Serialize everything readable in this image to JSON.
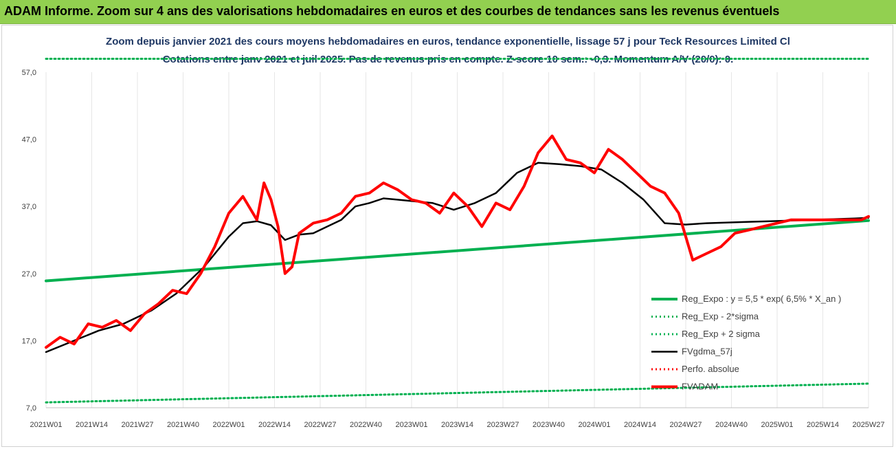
{
  "header": {
    "title": "ADAM Informe. Zoom sur 4 ans des valorisations hebdomadaires en euros et des courbes de tendances sans les revenus éventuels"
  },
  "chart_data": {
    "type": "line",
    "title_line1": "Zoom depuis janvier 2021 des cours moyens hebdomadaires en euros, tendance exponentielle, lissage 57 j pour Teck Resources Limited Cl",
    "title_line2": "Cotations entre janv 2021 et juil 2025. Pas de revenus pris en compte. Z-score 10 sem.: -0,3. Momentum A/V (20/0): 0.",
    "x_tick_labels": [
      "2021W01",
      "2021W14",
      "2021W27",
      "2021W40",
      "2022W01",
      "2022W14",
      "2022W27",
      "2022W40",
      "2023W01",
      "2023W14",
      "2023W27",
      "2023W40",
      "2024W01",
      "2024W14",
      "2024W27",
      "2024W40",
      "2025W01",
      "2025W14",
      "2025W27"
    ],
    "y_tick_labels": [
      "7,0",
      "17,0",
      "27,0",
      "37,0",
      "47,0",
      "57,0"
    ],
    "ylim": [
      7,
      57
    ],
    "x_range_weeks": [
      0,
      234
    ],
    "grid": "vertical",
    "legend_position": "bottom-right",
    "series": [
      {
        "name": "Reg_Expo : y = 5,5 * exp( 6,5% *  X_an )",
        "color": "#00b050",
        "style": "solid-thick",
        "x": [
          0,
          234
        ],
        "y": [
          25.9,
          34.9
        ]
      },
      {
        "name": "Reg_Exp - 2*sigma",
        "color": "#00b050",
        "style": "dotted",
        "x": [
          0,
          234
        ],
        "y": [
          7.8,
          10.6
        ]
      },
      {
        "name": "Reg_Exp + 2 sigma",
        "color": "#00b050",
        "style": "dotted",
        "x": [
          0,
          20,
          234
        ],
        "y": [
          59.0,
          59.0,
          59.0
        ]
      },
      {
        "name": "FVgdma_57j",
        "color": "#000000",
        "style": "solid",
        "x": [
          0,
          8,
          15,
          22,
          30,
          37,
          45,
          52,
          56,
          60,
          64,
          68,
          72,
          76,
          80,
          84,
          88,
          92,
          96,
          100,
          104,
          110,
          116,
          122,
          128,
          134,
          140,
          146,
          152,
          158,
          164,
          170,
          176,
          182,
          188,
          194,
          200,
          206,
          212,
          218,
          224,
          230,
          234
        ],
        "y": [
          15.3,
          17.0,
          18.5,
          19.5,
          21.5,
          24.0,
          28.0,
          32.5,
          34.5,
          34.8,
          34.2,
          32.0,
          32.8,
          33.0,
          34.0,
          35.0,
          37.0,
          37.5,
          38.2,
          38.0,
          37.8,
          37.5,
          36.5,
          37.5,
          39.0,
          42.0,
          43.5,
          43.3,
          43.0,
          42.5,
          40.5,
          38.0,
          34.5,
          34.3,
          34.5,
          34.6,
          34.7,
          34.8,
          34.9,
          35.0,
          35.1,
          35.2,
          35.3
        ]
      },
      {
        "name": "Perfo. absolue",
        "color": "#ff0000",
        "style": "dotted",
        "x": [],
        "y": []
      },
      {
        "name": "FVADAM",
        "color": "#ff0000",
        "style": "solid-thick",
        "x": [
          0,
          4,
          8,
          12,
          16,
          20,
          24,
          28,
          32,
          36,
          40,
          44,
          48,
          52,
          56,
          60,
          62,
          64,
          66,
          68,
          70,
          72,
          76,
          80,
          84,
          88,
          92,
          96,
          100,
          104,
          108,
          112,
          116,
          120,
          124,
          128,
          132,
          136,
          140,
          144,
          148,
          152,
          156,
          160,
          164,
          168,
          172,
          176,
          180,
          184,
          188,
          192,
          196,
          200,
          204,
          208,
          212,
          216,
          220,
          224,
          228,
          232,
          234
        ],
        "y": [
          16.0,
          17.5,
          16.5,
          19.5,
          19.0,
          20.0,
          18.5,
          21.0,
          22.5,
          24.5,
          24.0,
          27.0,
          31.0,
          36.0,
          38.5,
          35.0,
          40.5,
          38.0,
          34.0,
          27.0,
          28.0,
          33.0,
          34.5,
          35.0,
          36.0,
          38.5,
          39.0,
          40.5,
          39.5,
          38.0,
          37.5,
          36.0,
          39.0,
          37.0,
          34.0,
          37.5,
          36.5,
          40.0,
          45.0,
          47.5,
          44.0,
          43.5,
          42.0,
          45.5,
          44.0,
          42.0,
          40.0,
          39.0,
          36.0,
          29.0,
          30.0,
          31.0,
          33.0,
          33.5,
          34.0,
          34.5,
          35.0,
          35.0,
          35.0,
          35.0,
          35.0,
          35.0,
          35.5
        ]
      }
    ]
  }
}
